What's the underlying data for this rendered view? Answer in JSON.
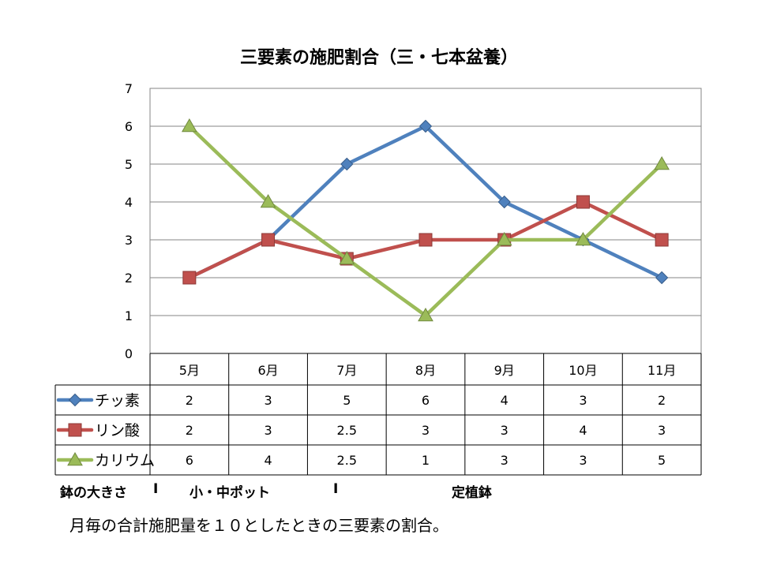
{
  "chart_data": {
    "type": "line",
    "title": "三要素の施肥割合（三・七本盆養）",
    "categories": [
      "5月",
      "6月",
      "7月",
      "8月",
      "9月",
      "10月",
      "11月"
    ],
    "ylim": [
      0,
      7
    ],
    "yticks": [
      "0",
      "1",
      "2",
      "3",
      "4",
      "5",
      "6",
      "7"
    ],
    "grid": true,
    "legend": "data-table",
    "series": [
      {
        "name": "チッ素",
        "color": "#4F81BD",
        "marker": "diamond",
        "values": [
          2,
          3,
          5,
          6,
          4,
          3,
          2
        ],
        "labels": [
          "2",
          "3",
          "5",
          "6",
          "4",
          "3",
          "2"
        ]
      },
      {
        "name": "リン酸",
        "color": "#C0504D",
        "marker": "square",
        "values": [
          2,
          3,
          2.5,
          3,
          3,
          4,
          3
        ],
        "labels": [
          "2",
          "3",
          "2.5",
          "3",
          "3",
          "4",
          "3"
        ]
      },
      {
        "name": "カリウム",
        "color": "#9BBB59",
        "marker": "triangle",
        "values": [
          6,
          4,
          2.5,
          1,
          3,
          3,
          5
        ],
        "labels": [
          "6",
          "4",
          "2.5",
          "1",
          "3",
          "3",
          "5"
        ]
      }
    ]
  },
  "notes": {
    "pot_size": "鉢の大きさ",
    "sep1": "I",
    "small_medium_pot": "小・中ポット",
    "sep2": "I",
    "final_pot": "定植鉢"
  },
  "caption": "月毎の合計施肥量を１０としたときの三要素の割合。"
}
